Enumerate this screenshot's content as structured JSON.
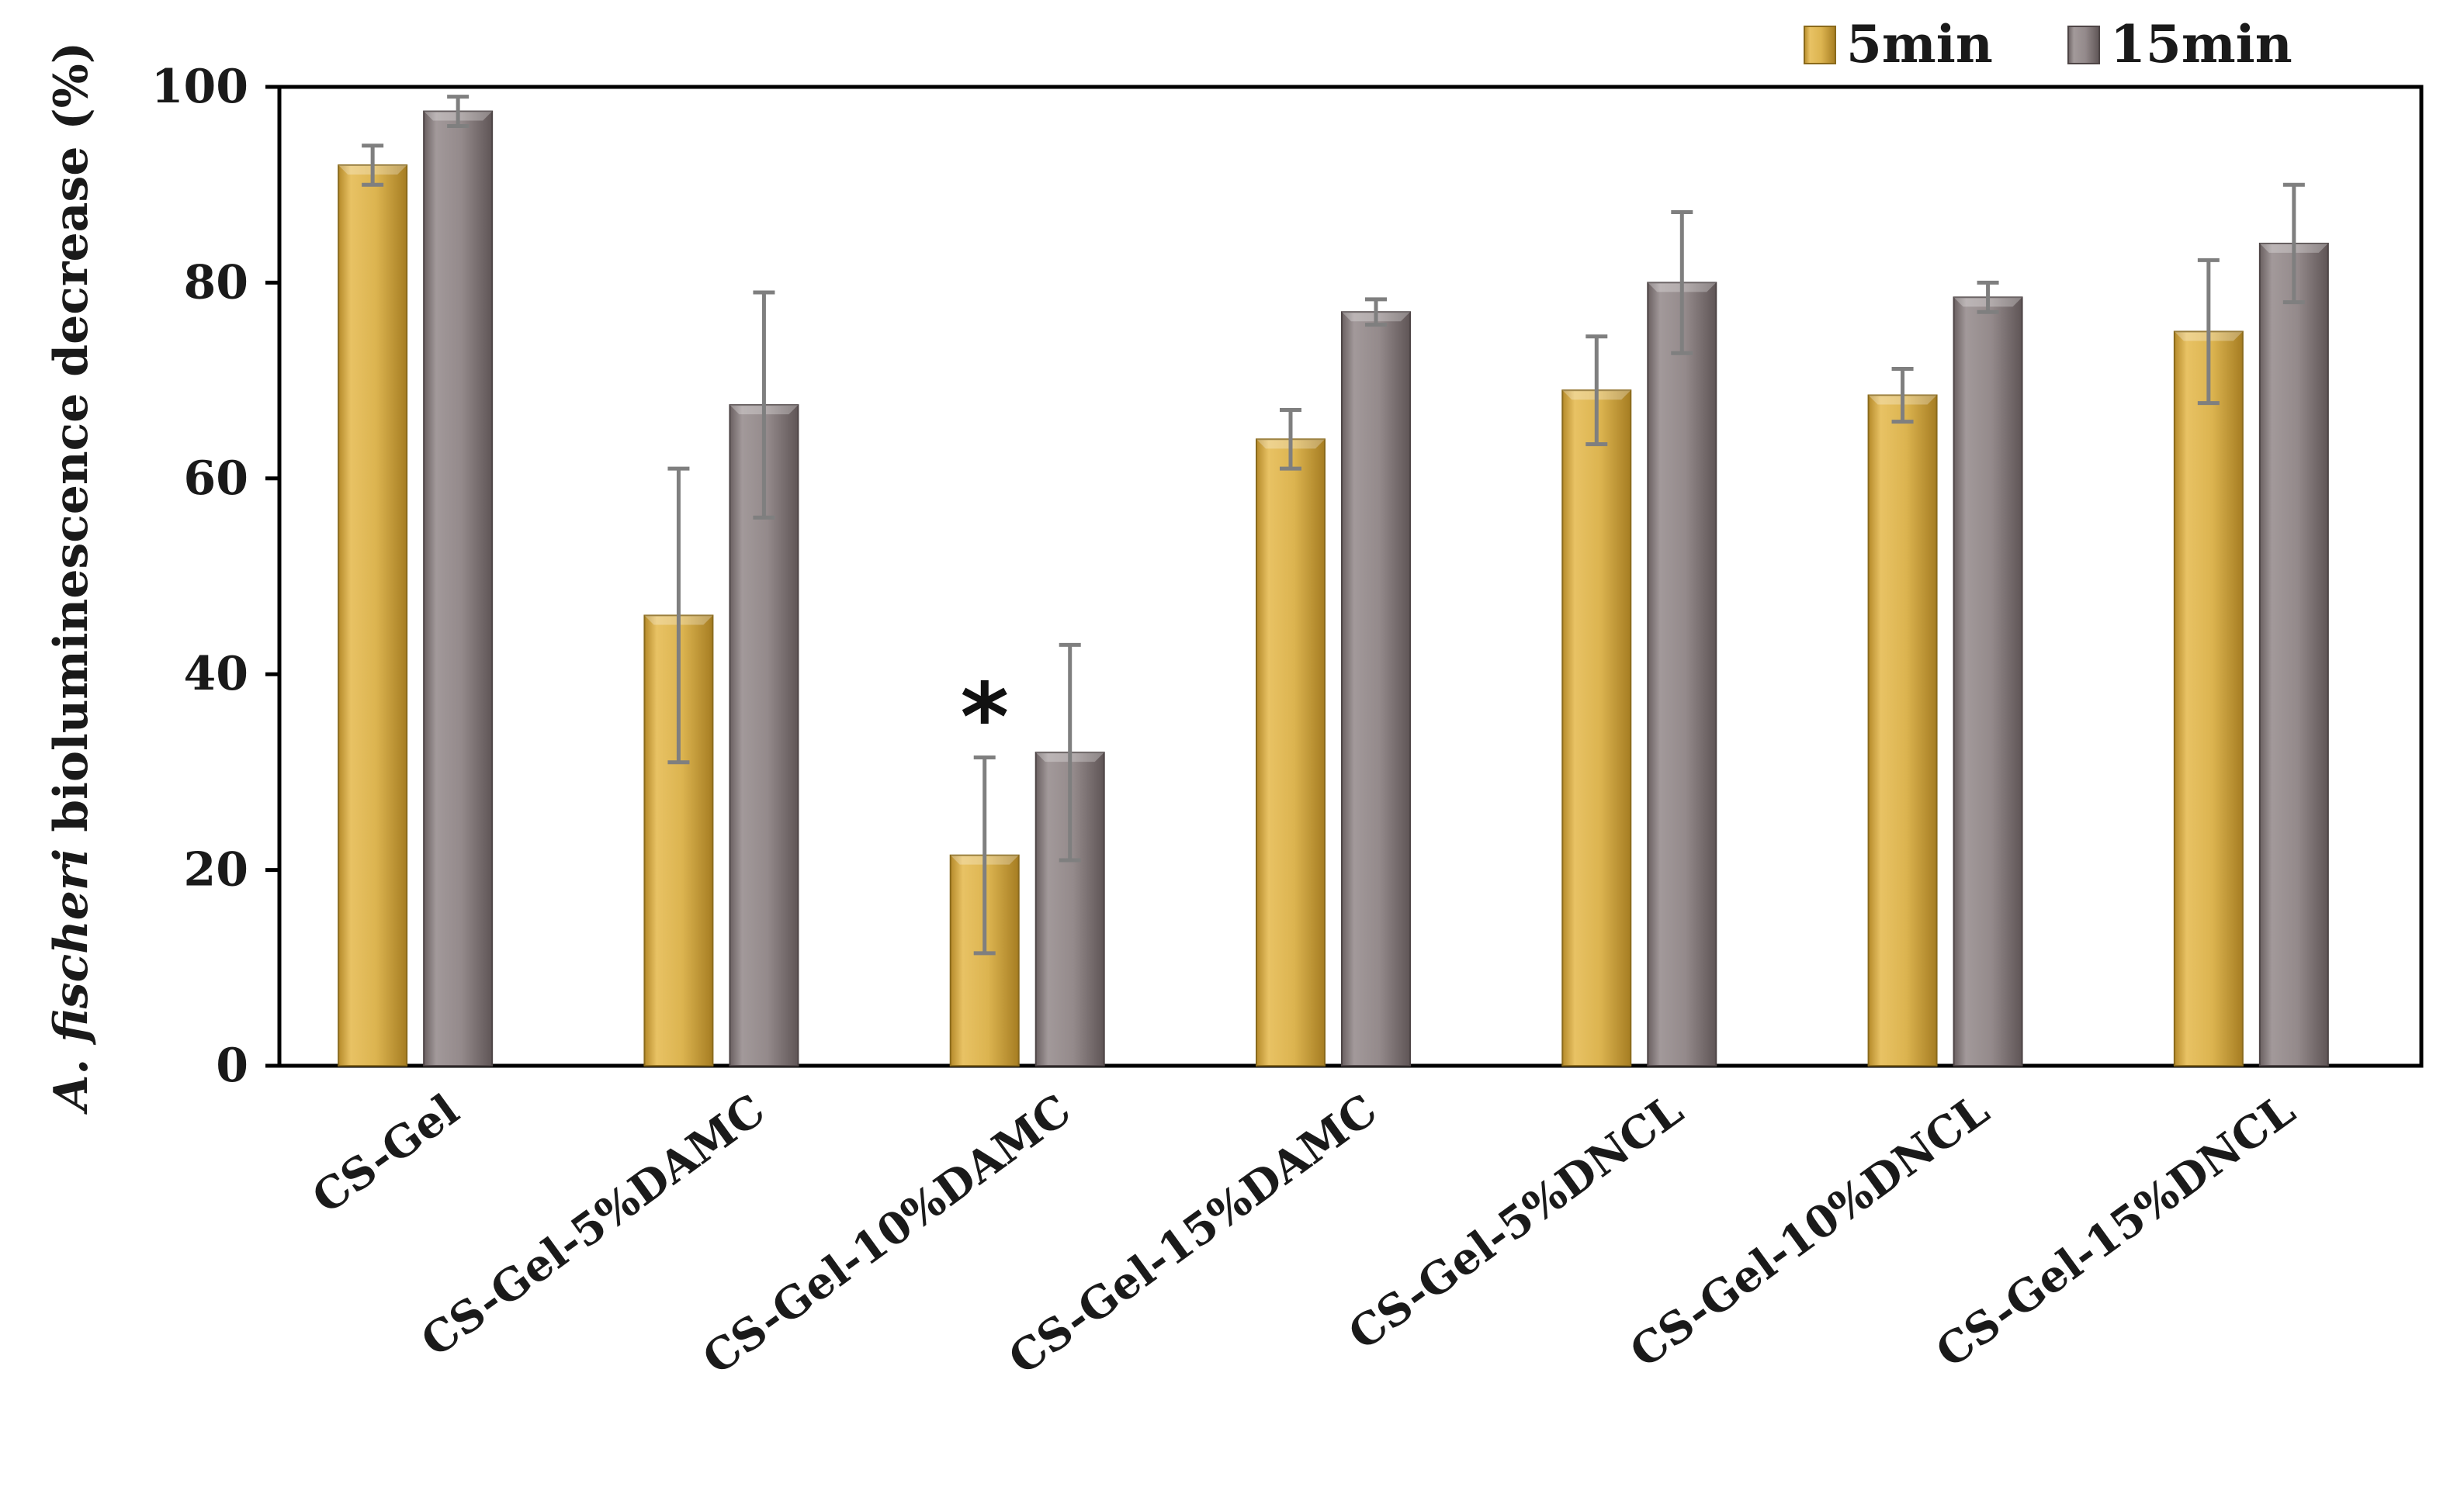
{
  "chart_data": {
    "type": "bar",
    "title": "",
    "xlabel": "",
    "ylabel": {
      "italic_part": "A. fischeri",
      "rest": " bioluminescence decrease (%)"
    },
    "ylim": [
      0,
      100
    ],
    "yticks": [
      "0",
      "20",
      "40",
      "60",
      "80",
      "100"
    ],
    "grid": false,
    "legend_position": "top-right",
    "categories": [
      "CS-Gel",
      "CS-Gel-5%DAMC",
      "CS-Gel-10%DAMC",
      "CS-Gel-15%DAMC",
      "CS-Gel-5%DNCL",
      "CS-Gel-10%DNCL",
      "CS-Gel-15%DNCL"
    ],
    "series": [
      {
        "name": "5min",
        "color": "#d9b04a",
        "values": [
          92,
          46,
          21.5,
          64,
          69,
          68.5,
          75
        ],
        "errors": [
          2,
          15,
          10,
          3,
          5.5,
          2.7,
          7.3
        ]
      },
      {
        "name": "15min",
        "color": "#8d8283",
        "values": [
          97.5,
          67.5,
          32,
          77,
          80,
          78.5,
          84
        ],
        "errors": [
          1.5,
          11.5,
          11,
          1.3,
          7.2,
          1.5,
          6
        ]
      }
    ],
    "annotations": [
      {
        "text": "*",
        "category": "CS-Gel-10%DAMC",
        "series": "5min"
      }
    ]
  }
}
